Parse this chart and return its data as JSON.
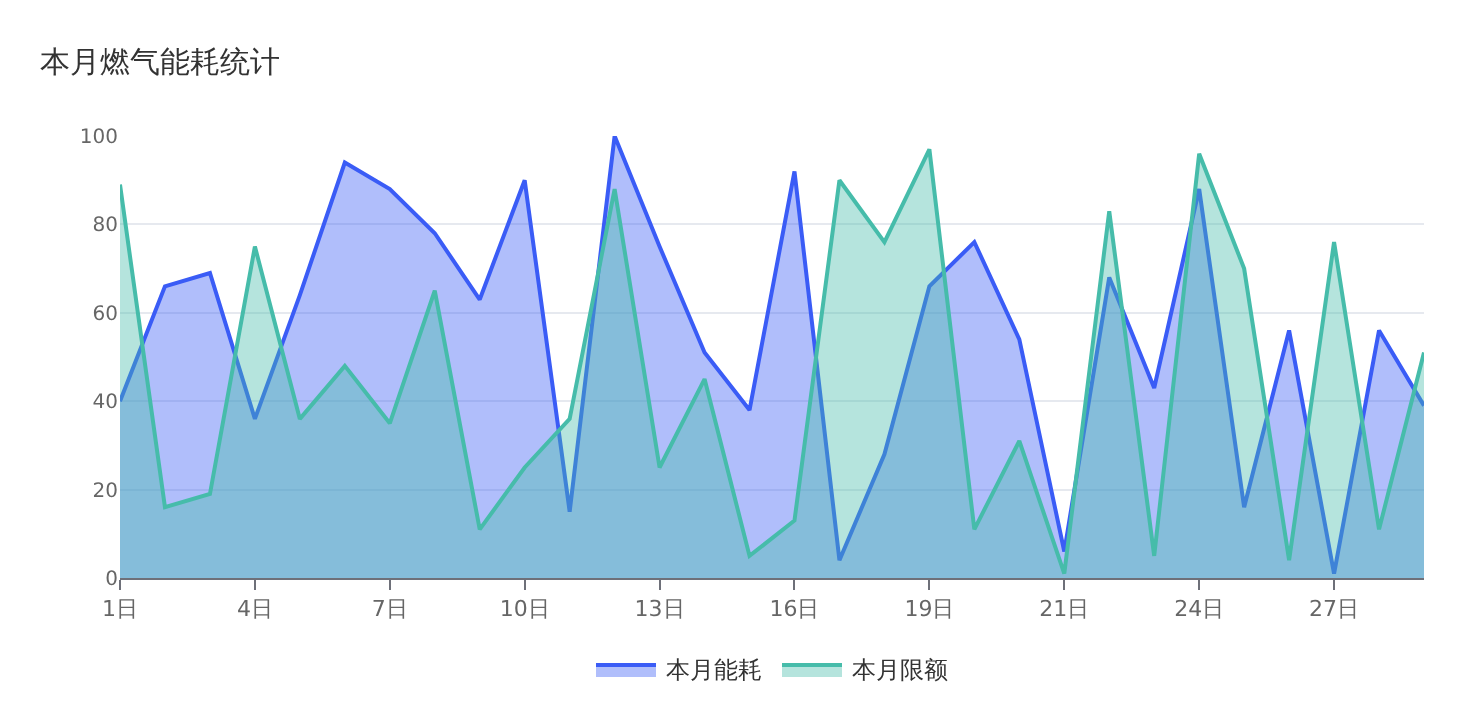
{
  "chart_data": {
    "type": "area",
    "title": "本月燃气能耗统计",
    "categories": [
      "1日",
      null,
      null,
      "4日",
      null,
      null,
      "7日",
      null,
      null,
      "10日",
      null,
      null,
      "13日",
      null,
      null,
      "16日",
      null,
      null,
      "19日",
      null,
      null,
      "21日",
      null,
      null,
      "24日",
      null,
      null,
      "27日",
      null,
      null
    ],
    "series": [
      {
        "name": "本月能耗",
        "color": "#3a5cf6",
        "values": [
          40,
          66,
          69,
          36,
          64,
          94,
          88,
          78,
          63,
          90,
          15,
          100,
          75,
          51,
          38,
          92,
          4,
          28,
          66,
          76,
          54,
          6,
          68,
          43,
          88,
          16,
          56,
          1,
          56,
          39
        ]
      },
      {
        "name": "本月限额",
        "color": "#46bcaa",
        "values": [
          89,
          16,
          19,
          75,
          36,
          48,
          35,
          65,
          11,
          25,
          36,
          88,
          25,
          45,
          5,
          13,
          90,
          76,
          97,
          11,
          31,
          1,
          83,
          5,
          96,
          70,
          4,
          76,
          11,
          51
        ]
      }
    ],
    "ylim": [
      0,
      100
    ],
    "yticks": [
      0,
      20,
      40,
      60,
      80,
      100
    ],
    "grid": "y",
    "legend": "bottom",
    "marker": "none",
    "line_style": "solid"
  }
}
